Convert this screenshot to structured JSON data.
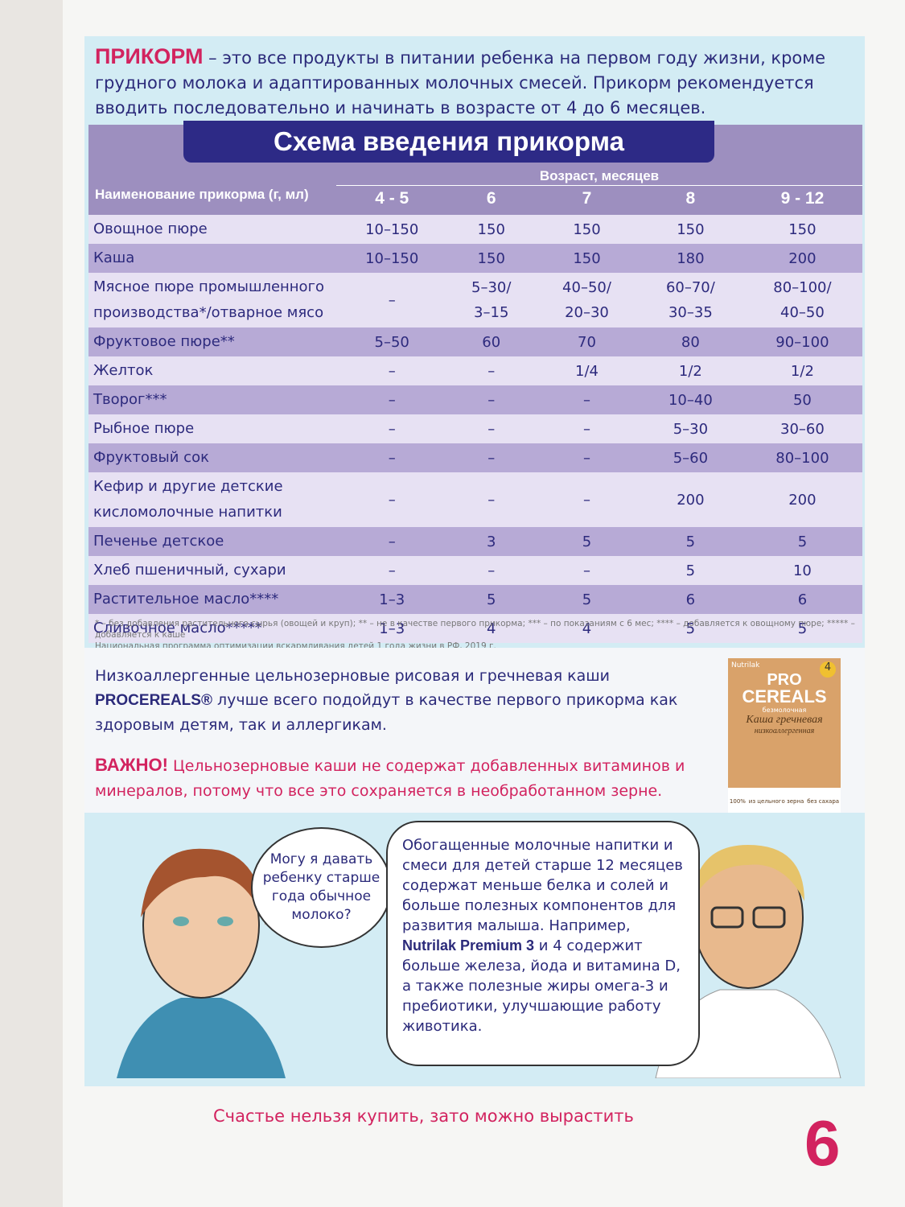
{
  "intro": {
    "highlight": "ПРИКОРМ",
    "text": "– это все продукты в питании ребенка на первом году жизни, кроме грудного молока и адаптированных молочных смесей. Прикорм рекомендуется вводить последовательно и начинать в возрасте от 4 до 6 месяцев."
  },
  "table": {
    "title": "Схема введения прикорма",
    "name_header": "Наименование прикорма (г, мл)",
    "age_header": "Возраст, месяцев",
    "ages": [
      "4 - 5",
      "6",
      "7",
      "8",
      "9 - 12"
    ],
    "rows": [
      [
        "Овощное пюре",
        "10–150",
        "150",
        "150",
        "150",
        "150"
      ],
      [
        "Каша",
        "10–150",
        "150",
        "150",
        "180",
        "200"
      ],
      [
        "Мясное пюре промышленного производства*/отварное мясо",
        "–",
        "5–30/\n3–15",
        "40–50/\n20–30",
        "60–70/\n30–35",
        "80–100/\n40–50"
      ],
      [
        "Фруктовое пюре**",
        "5–50",
        "60",
        "70",
        "80",
        "90–100"
      ],
      [
        "Желток",
        "–",
        "–",
        "1/4",
        "1/2",
        "1/2"
      ],
      [
        "Творог***",
        "–",
        "–",
        "–",
        "10–40",
        "50"
      ],
      [
        "Рыбное пюре",
        "–",
        "–",
        "–",
        "5–30",
        "30–60"
      ],
      [
        "Фруктовый сок",
        "–",
        "–",
        "–",
        "5–60",
        "80–100"
      ],
      [
        "Кефир и другие детские кисломолочные напитки",
        "–",
        "–",
        "–",
        "200",
        "200"
      ],
      [
        "Печенье детское",
        "–",
        "3",
        "5",
        "5",
        "5"
      ],
      [
        "Хлеб пшеничный, сухари",
        "–",
        "–",
        "–",
        "5",
        "10"
      ],
      [
        "Растительное масло****",
        "1–3",
        "5",
        "5",
        "6",
        "6"
      ],
      [
        "Сливочное масло*****",
        "1–3",
        "4",
        "4",
        "5",
        "5"
      ]
    ]
  },
  "footnotes": [
    "* – без добавления растительного сырья (овощей и круп); ** – не в качестве первого прикорма; *** – по показаниям с 6 мес; **** – добавляется к овощному пюре; ***** – добавляется к каше",
    "Национальная программа оптимизации вскармливания детей 1 года жизни в РФ, 2019 г."
  ],
  "product": {
    "text_before": "Низкоаллергенные цельнозерновые рисовая и гречневая каши",
    "brand": "PROCEREALS®",
    "text_after": "лучше всего подойдут в качестве первого прикорма как здоровым детям, так и аллергикам."
  },
  "important": {
    "label": "ВАЖНО!",
    "text": "Цельнозерновые каши не содержат добавленных витаминов и минералов, потому что все это сохраняется в необработанном зерне."
  },
  "package": {
    "maker": "Nutrilak",
    "pro": "PRO",
    "cereals": "CEREALS",
    "age": "4",
    "subtitle": "безмолочная",
    "name": "Каша гречневая",
    "kind": "низкоаллергенная",
    "badge1": "100%",
    "badge2": "из цельного зерна",
    "badge3": "без сахара"
  },
  "comic": {
    "question": "Могу я давать ребенку старше года обычное молоко?",
    "answer_before": "Обогащенные молочные напитки и смеси для детей старше 12 месяцев содержат меньше белка и солей и больше полезных компонентов для развития малыша. Например,",
    "answer_brand": "Nutrilak Premium 3",
    "answer_after": "и 4 содержит больше железа, йода и витамина D, а также полезные жиры омега-3 и пребиотики, улучшающие работу животика."
  },
  "footer": {
    "slogan": "Счастье нельзя купить, зато можно вырастить",
    "page": "6"
  }
}
